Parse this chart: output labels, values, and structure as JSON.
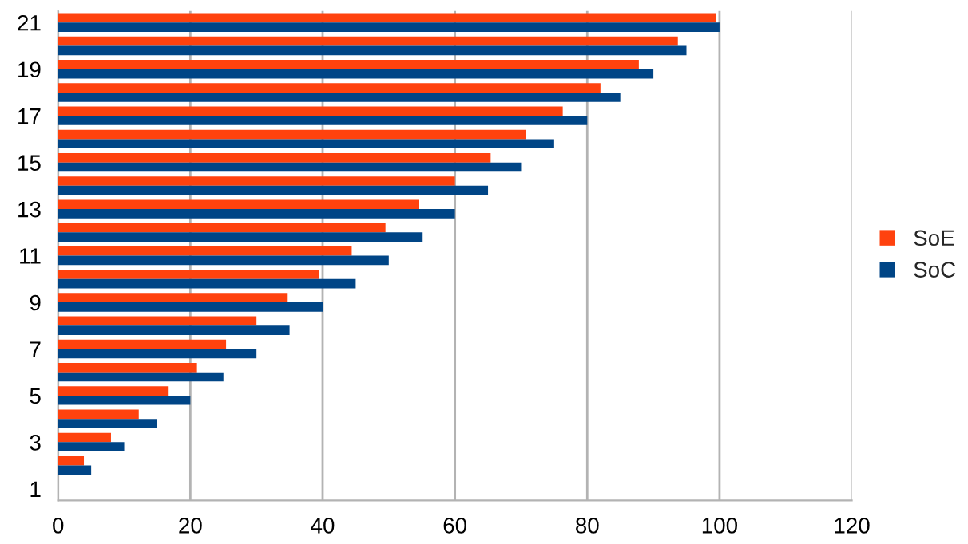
{
  "chart_data": {
    "type": "bar",
    "orientation": "horizontal",
    "categories": [
      "21",
      null,
      "19",
      null,
      "17",
      null,
      "15",
      null,
      "13",
      null,
      "11",
      null,
      "9",
      null,
      "7",
      null,
      "5",
      null,
      "3",
      null,
      "1"
    ],
    "series": [
      {
        "name": "SoE",
        "color": "#ff420e",
        "values": [
          99.5,
          93.7,
          87.8,
          82,
          76.3,
          70.7,
          65.4,
          60,
          54.6,
          49.5,
          44.4,
          39.5,
          34.6,
          30,
          25.4,
          21,
          16.6,
          12.2,
          8,
          3.9,
          null
        ]
      },
      {
        "name": "SoC",
        "color": "#004586",
        "values": [
          100,
          95,
          90,
          85,
          80,
          75,
          70,
          65,
          60,
          55,
          50,
          45,
          40,
          35,
          30,
          25,
          20,
          15,
          10,
          5,
          null
        ]
      }
    ],
    "xlim": [
      0,
      120
    ],
    "xticks": [
      0,
      20,
      40,
      60,
      80,
      100,
      120
    ],
    "grid": "x",
    "legend": "right"
  }
}
